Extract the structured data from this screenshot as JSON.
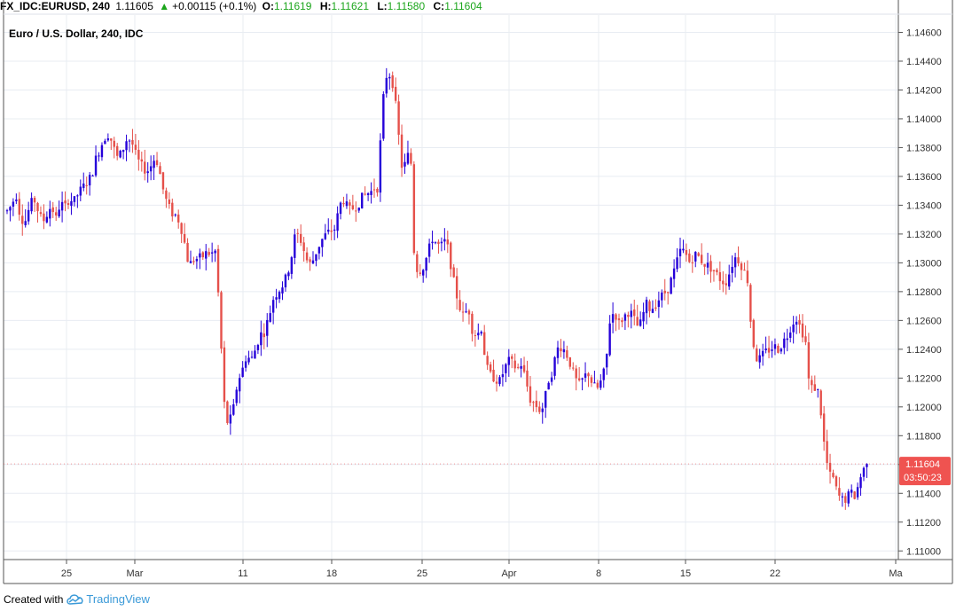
{
  "header": {
    "symbol": "FX_IDC:EURUSD, 240",
    "last": "1.11605",
    "change_arrow": "▲",
    "change": "+0.00115 (+0.1%)",
    "o_label": "O:",
    "o_value": "1.11619",
    "h_label": "H:",
    "h_value": "1.11621",
    "l_label": "L:",
    "l_value": "1.11580",
    "c_label": "C:",
    "c_value": "1.11604"
  },
  "footer": {
    "created_with": "Created with",
    "brand": "TradingView",
    "logo_icon": "tradingview-cloud-icon"
  },
  "colors": {
    "up": "#2500d9",
    "down": "#e5504a",
    "grid": "#e8ecf2",
    "axis": "#555555",
    "price_tag": "#ef5350"
  },
  "chart_data": {
    "type": "candlestick",
    "title": "Euro / U.S. Dollar, 240, IDC",
    "y_ticks": [
      "1.11000",
      "1.11200",
      "1.11400",
      "1.11600",
      "1.11800",
      "1.12000",
      "1.12200",
      "1.12400",
      "1.12600",
      "1.12800",
      "1.13000",
      "1.13200",
      "1.13400",
      "1.13600",
      "1.13800",
      "1.14000",
      "1.14200",
      "1.14400",
      "1.14600"
    ],
    "x_ticks": [
      "25",
      "Mar",
      "11",
      "18",
      "25",
      "Apr",
      "8",
      "15",
      "22",
      "Ma"
    ],
    "ylim": [
      1.1094,
      1.1472
    ],
    "last_price": "1.11604",
    "countdown": "03:50:23",
    "grid": true,
    "close_path": [
      [
        0,
        1.1336
      ],
      [
        5,
        1.134
      ],
      [
        10,
        1.1348
      ],
      [
        15,
        1.1332
      ],
      [
        20,
        1.1328
      ],
      [
        25,
        1.1338
      ],
      [
        30,
        1.1345
      ],
      [
        35,
        1.1336
      ],
      [
        40,
        1.1328
      ],
      [
        45,
        1.1334
      ],
      [
        50,
        1.134
      ],
      [
        55,
        1.133
      ],
      [
        60,
        1.1342
      ],
      [
        65,
        1.1338
      ],
      [
        70,
        1.1345
      ],
      [
        75,
        1.1342
      ],
      [
        80,
        1.1348
      ],
      [
        85,
        1.1352
      ],
      [
        90,
        1.1356
      ],
      [
        95,
        1.136
      ],
      [
        100,
        1.1372
      ],
      [
        105,
        1.138
      ],
      [
        110,
        1.1387
      ],
      [
        115,
        1.139
      ],
      [
        120,
        1.138
      ],
      [
        125,
        1.1372
      ],
      [
        130,
        1.1378
      ],
      [
        135,
        1.1386
      ],
      [
        140,
        1.1385
      ],
      [
        145,
        1.1375
      ],
      [
        150,
        1.1368
      ],
      [
        155,
        1.1365
      ],
      [
        160,
        1.1364
      ],
      [
        165,
        1.1372
      ],
      [
        170,
        1.137
      ],
      [
        175,
        1.1353
      ],
      [
        180,
        1.1342
      ],
      [
        185,
        1.1335
      ],
      [
        190,
        1.1333
      ],
      [
        195,
        1.1328
      ],
      [
        200,
        1.1314
      ],
      [
        205,
        1.1298
      ],
      [
        210,
        1.1302
      ],
      [
        215,
        1.1303
      ],
      [
        220,
        1.1304
      ],
      [
        225,
        1.1307
      ],
      [
        230,
        1.1306
      ],
      [
        235,
        1.1308
      ],
      [
        240,
        1.126
      ],
      [
        243,
        1.122
      ],
      [
        246,
        1.1192
      ],
      [
        250,
        1.1188
      ],
      [
        255,
        1.1198
      ],
      [
        260,
        1.1218
      ],
      [
        265,
        1.1225
      ],
      [
        270,
        1.1236
      ],
      [
        275,
        1.1232
      ],
      [
        280,
        1.124
      ],
      [
        285,
        1.125
      ],
      [
        290,
        1.1252
      ],
      [
        295,
        1.1262
      ],
      [
        300,
        1.1275
      ],
      [
        305,
        1.128
      ],
      [
        310,
        1.1284
      ],
      [
        315,
        1.129
      ],
      [
        320,
        1.1302
      ],
      [
        325,
        1.132
      ],
      [
        330,
        1.1318
      ],
      [
        335,
        1.1308
      ],
      [
        340,
        1.1298
      ],
      [
        345,
        1.1302
      ],
      [
        350,
        1.131
      ],
      [
        355,
        1.1316
      ],
      [
        360,
        1.132
      ],
      [
        365,
        1.1322
      ],
      [
        370,
        1.1324
      ],
      [
        375,
        1.134
      ],
      [
        380,
        1.1344
      ],
      [
        385,
        1.1336
      ],
      [
        390,
        1.1338
      ],
      [
        395,
        1.134
      ],
      [
        400,
        1.1345
      ],
      [
        405,
        1.1348
      ],
      [
        410,
        1.1349
      ],
      [
        415,
        1.1353
      ],
      [
        418,
        1.1352
      ],
      [
        422,
        1.1395
      ],
      [
        426,
        1.1428
      ],
      [
        430,
        1.1432
      ],
      [
        434,
        1.1428
      ],
      [
        438,
        1.141
      ],
      [
        442,
        1.1385
      ],
      [
        446,
        1.1362
      ],
      [
        450,
        1.1372
      ],
      [
        455,
        1.1378
      ],
      [
        458,
        1.1312
      ],
      [
        462,
        1.1296
      ],
      [
        466,
        1.1295
      ],
      [
        470,
        1.1298
      ],
      [
        475,
        1.1308
      ],
      [
        480,
        1.1318
      ],
      [
        485,
        1.1312
      ],
      [
        490,
        1.1312
      ],
      [
        495,
        1.1316
      ],
      [
        500,
        1.13
      ],
      [
        505,
        1.1282
      ],
      [
        510,
        1.127
      ],
      [
        515,
        1.1262
      ],
      [
        520,
        1.127
      ],
      [
        525,
        1.1252
      ],
      [
        530,
        1.125
      ],
      [
        535,
        1.1255
      ],
      [
        540,
        1.1228
      ],
      [
        545,
        1.1222
      ],
      [
        550,
        1.122
      ],
      [
        555,
        1.1217
      ],
      [
        560,
        1.1225
      ],
      [
        565,
        1.1232
      ],
      [
        570,
        1.123
      ],
      [
        575,
        1.1226
      ],
      [
        580,
        1.123
      ],
      [
        585,
        1.1218
      ],
      [
        590,
        1.1205
      ],
      [
        595,
        1.1202
      ],
      [
        600,
        1.1198
      ],
      [
        605,
        1.12
      ],
      [
        610,
        1.1218
      ],
      [
        615,
        1.1225
      ],
      [
        620,
        1.124
      ],
      [
        625,
        1.1242
      ],
      [
        630,
        1.1238
      ],
      [
        635,
        1.123
      ],
      [
        640,
        1.122
      ],
      [
        645,
        1.1215
      ],
      [
        650,
        1.122
      ],
      [
        655,
        1.1224
      ],
      [
        660,
        1.1216
      ],
      [
        665,
        1.1212
      ],
      [
        670,
        1.1218
      ],
      [
        675,
        1.1228
      ],
      [
        680,
        1.1262
      ],
      [
        685,
        1.1266
      ],
      [
        690,
        1.1258
      ],
      [
        695,
        1.1262
      ],
      [
        700,
        1.1266
      ],
      [
        705,
        1.1264
      ],
      [
        710,
        1.1256
      ],
      [
        715,
        1.1258
      ],
      [
        720,
        1.1272
      ],
      [
        725,
        1.1268
      ],
      [
        730,
        1.127
      ],
      [
        735,
        1.1275
      ],
      [
        740,
        1.1278
      ],
      [
        745,
        1.1282
      ],
      [
        750,
        1.129
      ],
      [
        755,
        1.13
      ],
      [
        760,
        1.131
      ],
      [
        765,
        1.1306
      ],
      [
        770,
        1.13
      ],
      [
        775,
        1.1306
      ],
      [
        780,
        1.1304
      ],
      [
        785,
        1.13
      ],
      [
        790,
        1.1298
      ],
      [
        795,
        1.1296
      ],
      [
        800,
        1.1292
      ],
      [
        805,
        1.1288
      ],
      [
        810,
        1.1286
      ],
      [
        815,
        1.1294
      ],
      [
        820,
        1.1304
      ],
      [
        825,
        1.1302
      ],
      [
        830,
        1.1296
      ],
      [
        835,
        1.1288
      ],
      [
        838,
        1.1262
      ],
      [
        842,
        1.1242
      ],
      [
        846,
        1.1232
      ],
      [
        850,
        1.1234
      ],
      [
        855,
        1.1238
      ],
      [
        860,
        1.124
      ],
      [
        865,
        1.1242
      ],
      [
        870,
        1.124
      ],
      [
        875,
        1.1245
      ],
      [
        880,
        1.125
      ],
      [
        885,
        1.1258
      ],
      [
        890,
        1.1262
      ],
      [
        895,
        1.1254
      ],
      [
        900,
        1.1248
      ],
      [
        904,
        1.1218
      ],
      [
        908,
        1.1212
      ],
      [
        912,
        1.1214
      ],
      [
        916,
        1.1208
      ],
      [
        920,
        1.118
      ],
      [
        924,
        1.1162
      ],
      [
        928,
        1.1152
      ],
      [
        932,
        1.115
      ],
      [
        936,
        1.114
      ],
      [
        940,
        1.1136
      ],
      [
        944,
        1.1135
      ],
      [
        948,
        1.1138
      ],
      [
        952,
        1.114
      ],
      [
        956,
        1.1138
      ],
      [
        960,
        1.1146
      ],
      [
        964,
        1.1155
      ],
      [
        968,
        1.1158
      ],
      [
        972,
        1.116
      ],
      [
        976,
        1.116
      ],
      [
        980,
        1.11605
      ]
    ]
  }
}
